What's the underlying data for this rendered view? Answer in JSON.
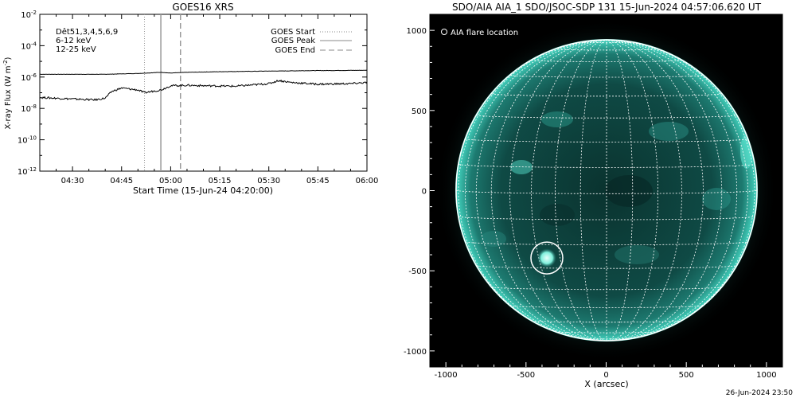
{
  "chart_data": [
    {
      "type": "line",
      "title": "GOES16 XRS",
      "xlabel": "Start Time (15-Jun-24 04:20:00)",
      "ylabel": "X-ray Flux (W m",
      "ylabel_sup": "-2",
      "ylabel_close": ")",
      "y_scale": "log",
      "ylim": [
        1e-12,
        0.01
      ],
      "xlim": [
        "04:20",
        "06:00"
      ],
      "x_ticks": [
        "04:30",
        "04:45",
        "05:00",
        "05:15",
        "05:30",
        "05:45",
        "06:00"
      ],
      "y_ticks": [
        {
          "base": "10",
          "exp": "-12"
        },
        {
          "base": "10",
          "exp": "-10"
        },
        {
          "base": "10",
          "exp": "-8"
        },
        {
          "base": "10",
          "exp": "-6"
        },
        {
          "base": "10",
          "exp": "-4"
        },
        {
          "base": "10",
          "exp": "-2"
        }
      ],
      "legend_left": [
        {
          "text": "Dêt51,3,4,5,6,9",
          "color": "#000000"
        },
        {
          "text": "6-12 keV",
          "color": "#e000e0"
        },
        {
          "text": "12-25 keV",
          "color": "#00d000"
        }
      ],
      "legend_right": [
        {
          "text": "GOES Start",
          "style": "dotted"
        },
        {
          "text": "GOES Peak",
          "style": "solid"
        },
        {
          "text": "GOES End",
          "style": "dashed"
        }
      ],
      "markers": {
        "start": "04:52",
        "peak": "04:57",
        "end": "05:03"
      },
      "series": [
        {
          "line": "upper",
          "points": [
            [
              "04:20",
              1.5e-06
            ],
            [
              "04:40",
              1.5e-06
            ],
            [
              "04:50",
              1.7e-06
            ],
            [
              "04:57",
              2e-06
            ],
            [
              "05:00",
              1.8e-06
            ],
            [
              "05:05",
              2e-06
            ],
            [
              "05:15",
              2.2e-06
            ],
            [
              "05:30",
              2.4e-06
            ],
            [
              "05:45",
              2.6e-06
            ],
            [
              "06:00",
              2.7e-06
            ]
          ]
        },
        {
          "line": "lower",
          "points": [
            [
              "04:20",
              5e-08
            ],
            [
              "04:30",
              4e-08
            ],
            [
              "04:37",
              3.5e-08
            ],
            [
              "04:40",
              4.5e-08
            ],
            [
              "04:42",
              1.2e-07
            ],
            [
              "04:45",
              2e-07
            ],
            [
              "04:50",
              1.5e-07
            ],
            [
              "04:52",
              1e-07
            ],
            [
              "04:55",
              1.3e-07
            ],
            [
              "04:57",
              1.5e-07
            ],
            [
              "05:00",
              2.8e-07
            ],
            [
              "05:05",
              3e-07
            ],
            [
              "05:10",
              2.8e-07
            ],
            [
              "05:20",
              2.6e-07
            ],
            [
              "05:30",
              3.8e-07
            ],
            [
              "05:33",
              6e-07
            ],
            [
              "05:37",
              4.5e-07
            ],
            [
              "05:45",
              3.5e-07
            ],
            [
              "05:55",
              3.8e-07
            ],
            [
              "06:00",
              4.5e-07
            ]
          ]
        }
      ]
    },
    {
      "type": "image",
      "title": "SDO/AIA AIA_1 SDO/JSOC-SDP 131 15-Jun-2024 04:57:06.620 UT",
      "xlabel": "X (arcsec)",
      "xlim": [
        -1100,
        1100
      ],
      "ylim": [
        -1100,
        1100
      ],
      "x_ticks": [
        "-1000",
        "-500",
        "0",
        "500",
        "1000"
      ],
      "y_ticks": [
        "-1000",
        "-500",
        "0",
        "500",
        "1000"
      ],
      "legend": "AIA flare location",
      "flare_location": {
        "x": -370,
        "y": -420
      },
      "colors": {
        "background": "#000000",
        "disk": "#0b3d3a",
        "limb": "#3fe0c8",
        "grid": "#ffffff"
      }
    }
  ],
  "footer": {
    "timestamp": "26-Jun-2024 23:50"
  }
}
